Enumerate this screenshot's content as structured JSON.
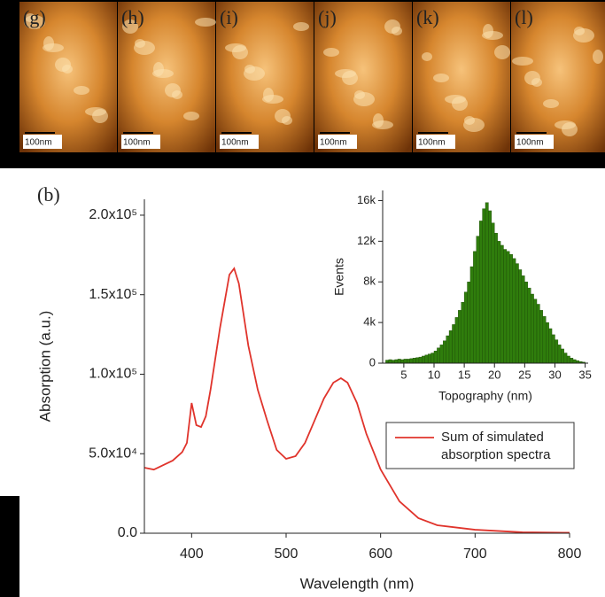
{
  "afm_panels": {
    "labels": [
      "(g)",
      "(h)",
      "(i)",
      "(j)",
      "(k)",
      "(l)"
    ],
    "scale_label": "100nm"
  },
  "chart_data": [
    {
      "type": "line",
      "annotation": "(b)",
      "x_label": "Wavelength (nm)",
      "y_label": "Absorption (a.u.)",
      "xlim": [
        350,
        800
      ],
      "ylim": [
        0,
        210000
      ],
      "xticks": [
        400,
        500,
        600,
        700,
        800
      ],
      "yticks": [
        {
          "value": 0,
          "label": "0.0"
        },
        {
          "value": 50000,
          "label": "5.0x10⁴"
        },
        {
          "value": 100000,
          "label": "1.0x10⁵"
        },
        {
          "value": 150000,
          "label": "1.5x10⁵"
        },
        {
          "value": 200000,
          "label": "2.0x10⁵"
        }
      ],
      "legend": "right",
      "x": [
        350,
        360,
        380,
        390,
        395,
        400,
        405,
        410,
        415,
        420,
        430,
        440,
        445,
        450,
        460,
        470,
        480,
        490,
        500,
        510,
        520,
        530,
        540,
        550,
        558,
        565,
        575,
        585,
        600,
        620,
        640,
        660,
        700,
        750,
        800
      ],
      "series": [
        {
          "name": "Sum of simulated absorption spectra",
          "color": "#e0342c",
          "values": [
            41200,
            40000,
            45700,
            51000,
            56800,
            81900,
            68000,
            66800,
            73500,
            90200,
            129000,
            162600,
            166500,
            157000,
            118000,
            90200,
            70700,
            52400,
            46800,
            48500,
            56800,
            70700,
            84700,
            94700,
            97500,
            94700,
            81900,
            62400,
            40100,
            20000,
            9500,
            5000,
            2200,
            600,
            300
          ]
        }
      ]
    },
    {
      "type": "histogram",
      "x_label": "Topography (nm)",
      "y_label": "Events",
      "color": "#2f7d0c",
      "xlim": [
        1.5,
        35.5
      ],
      "ylim": [
        0,
        17000
      ],
      "xticks": [
        5,
        10,
        15,
        20,
        25,
        30,
        35
      ],
      "yticks": [
        0,
        {
          "value": 4000,
          "label": "4k"
        },
        {
          "value": 8000,
          "label": "8k"
        },
        {
          "value": 12000,
          "label": "12k"
        },
        {
          "value": 16000,
          "label": "16k"
        }
      ],
      "bins": [
        2,
        2.5,
        3,
        3.5,
        4,
        4.5,
        5,
        5.5,
        6,
        6.5,
        7,
        7.5,
        8,
        8.5,
        9,
        9.5,
        10,
        10.5,
        11,
        11.5,
        12,
        12.5,
        13,
        13.5,
        14,
        14.5,
        15,
        15.5,
        16,
        16.5,
        17,
        17.5,
        18,
        18.5,
        19,
        19.5,
        20,
        20.5,
        21,
        21.5,
        22,
        22.5,
        23,
        23.5,
        24,
        24.5,
        25,
        25.5,
        26,
        26.5,
        27,
        27.5,
        28,
        28.5,
        29,
        29.5,
        30,
        30.5,
        31,
        31.5,
        32,
        32.5,
        33,
        33.5,
        34,
        34.5,
        35
      ],
      "values": [
        300,
        350,
        300,
        350,
        400,
        350,
        400,
        400,
        450,
        500,
        550,
        600,
        700,
        800,
        900,
        1000,
        1200,
        1500,
        1800,
        2200,
        2700,
        3200,
        3800,
        4500,
        5200,
        6000,
        7000,
        8000,
        9500,
        11000,
        12500,
        14000,
        15200,
        15800,
        15000,
        13800,
        12800,
        12000,
        11600,
        11200,
        11000,
        10700,
        10300,
        9800,
        9200,
        8600,
        8000,
        7400,
        6800,
        6300,
        5800,
        5200,
        4600,
        4000,
        3400,
        2800,
        2300,
        1800,
        1400,
        1000,
        700,
        500,
        350,
        250,
        150,
        100
      ]
    }
  ]
}
